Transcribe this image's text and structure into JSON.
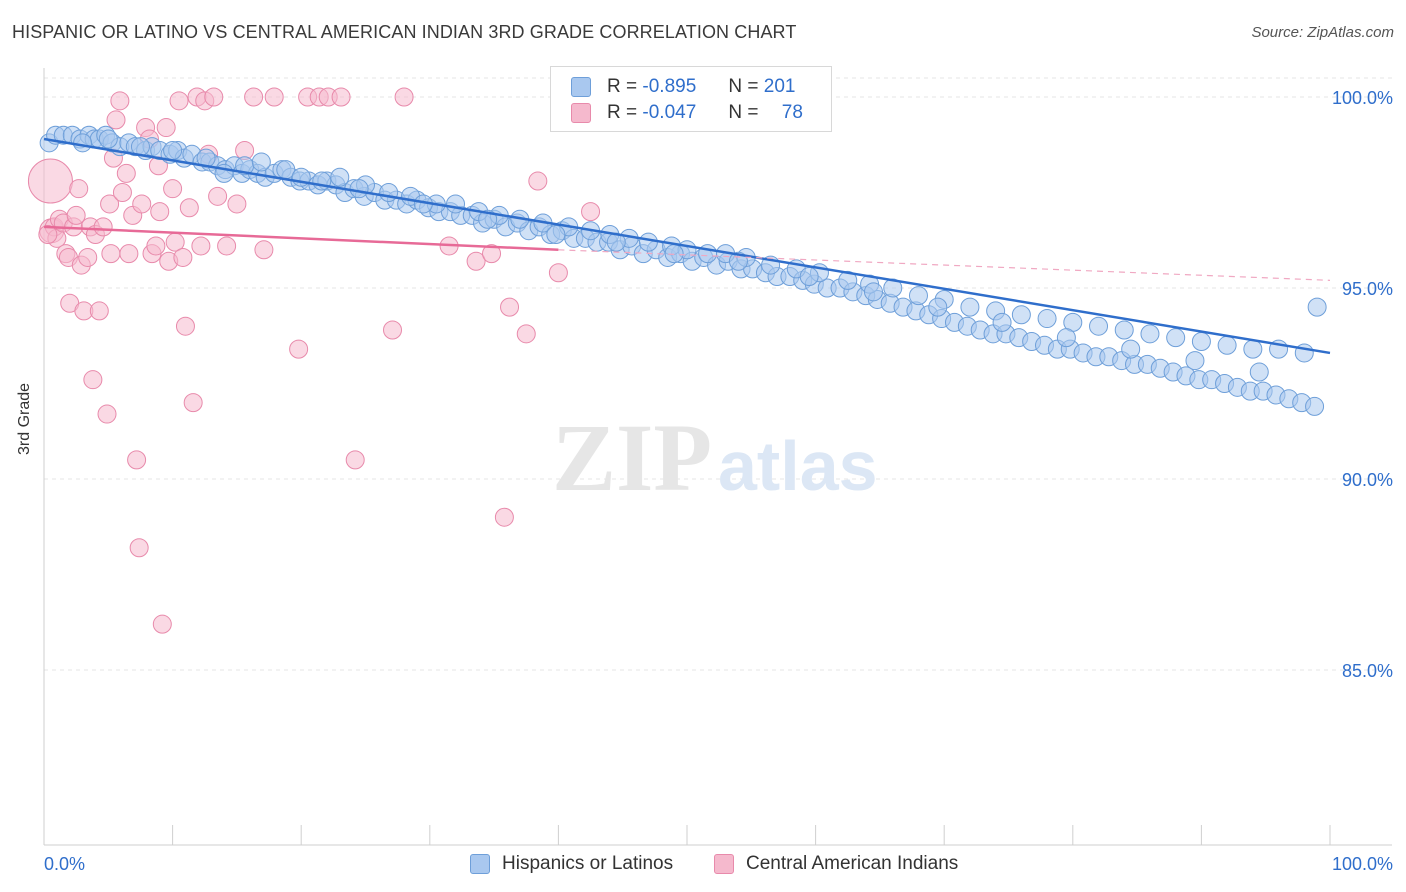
{
  "header": {
    "title": "HISPANIC OR LATINO VS CENTRAL AMERICAN INDIAN 3RD GRADE CORRELATION CHART",
    "source": "Source: ZipAtlas.com"
  },
  "watermark": {
    "zip": "ZIP",
    "atlas": "atlas"
  },
  "legend": {
    "series1": {
      "r_label": "R =",
      "r_value": "-0.895",
      "n_label": "N =",
      "n_value": "201"
    },
    "series2": {
      "r_label": "R =",
      "r_value": "-0.047",
      "n_label": "N =",
      "n_value": "78"
    }
  },
  "bottom_legend": {
    "series1": "Hispanics or Latinos",
    "series2": "Central American Indians"
  },
  "colors": {
    "blue": "#2f6ecb",
    "blue_fill": "#a9c8ef",
    "pink": "#e76a97",
    "pink_fill": "#f5b9cd",
    "grid": "#e0e0e0"
  },
  "chart_data": {
    "type": "scatter",
    "title": "HISPANIC OR LATINO VS CENTRAL AMERICAN INDIAN 3RD GRADE CORRELATION CHART",
    "xlabel": "",
    "ylabel": "3rd Grade",
    "xlim": [
      0,
      100
    ],
    "ylim": [
      80,
      101
    ],
    "x_tick_labels": [
      "0.0%",
      "100.0%"
    ],
    "y_ticks": [
      85,
      90,
      95,
      100
    ],
    "y_tick_labels": [
      "85.0%",
      "90.0%",
      "95.0%",
      "100.0%"
    ],
    "grid": true,
    "legend_position": "top-center",
    "series": [
      {
        "name": "Hispanics or Latinos",
        "color": "#2f6ecb",
        "trend": {
          "x": [
            0,
            100
          ],
          "y": [
            98.9,
            93.3
          ]
        },
        "points": [
          [
            0.4,
            98.8
          ],
          [
            0.9,
            99.0
          ],
          [
            1.5,
            99.0
          ],
          [
            2.2,
            99.0
          ],
          [
            2.8,
            98.9
          ],
          [
            3.5,
            99.0
          ],
          [
            3.9,
            98.9
          ],
          [
            4.3,
            98.9
          ],
          [
            4.8,
            99.0
          ],
          [
            5.3,
            98.8
          ],
          [
            5.9,
            98.7
          ],
          [
            6.6,
            98.8
          ],
          [
            7.1,
            98.7
          ],
          [
            7.9,
            98.6
          ],
          [
            8.4,
            98.7
          ],
          [
            9.0,
            98.6
          ],
          [
            9.8,
            98.5
          ],
          [
            10.4,
            98.6
          ],
          [
            10.9,
            98.4
          ],
          [
            11.5,
            98.5
          ],
          [
            12.3,
            98.3
          ],
          [
            12.9,
            98.3
          ],
          [
            13.5,
            98.2
          ],
          [
            14.1,
            98.1
          ],
          [
            14.8,
            98.2
          ],
          [
            15.4,
            98.0
          ],
          [
            16.0,
            98.1
          ],
          [
            16.6,
            98.0
          ],
          [
            17.2,
            97.9
          ],
          [
            17.9,
            98.0
          ],
          [
            18.5,
            98.1
          ],
          [
            19.2,
            97.9
          ],
          [
            19.9,
            97.8
          ],
          [
            20.6,
            97.8
          ],
          [
            21.3,
            97.7
          ],
          [
            22.0,
            97.8
          ],
          [
            22.7,
            97.7
          ],
          [
            23.4,
            97.5
          ],
          [
            24.1,
            97.6
          ],
          [
            24.9,
            97.4
          ],
          [
            25.7,
            97.5
          ],
          [
            26.5,
            97.3
          ],
          [
            27.4,
            97.3
          ],
          [
            28.2,
            97.2
          ],
          [
            29.0,
            97.3
          ],
          [
            29.9,
            97.1
          ],
          [
            30.7,
            97.0
          ],
          [
            31.6,
            97.0
          ],
          [
            32.4,
            96.9
          ],
          [
            33.3,
            96.9
          ],
          [
            34.1,
            96.7
          ],
          [
            35.0,
            96.8
          ],
          [
            35.9,
            96.6
          ],
          [
            36.8,
            96.7
          ],
          [
            37.7,
            96.5
          ],
          [
            38.5,
            96.6
          ],
          [
            39.4,
            96.4
          ],
          [
            40.3,
            96.5
          ],
          [
            41.2,
            96.3
          ],
          [
            42.1,
            96.3
          ],
          [
            43.0,
            96.2
          ],
          [
            43.9,
            96.2
          ],
          [
            44.8,
            96.0
          ],
          [
            45.7,
            96.1
          ],
          [
            46.6,
            95.9
          ],
          [
            47.6,
            96.0
          ],
          [
            48.5,
            95.8
          ],
          [
            49.5,
            95.9
          ],
          [
            50.4,
            95.7
          ],
          [
            51.3,
            95.8
          ],
          [
            52.3,
            95.6
          ],
          [
            53.2,
            95.7
          ],
          [
            54.2,
            95.5
          ],
          [
            55.1,
            95.5
          ],
          [
            56.1,
            95.4
          ],
          [
            57.0,
            95.3
          ],
          [
            58.0,
            95.3
          ],
          [
            59.0,
            95.2
          ],
          [
            59.9,
            95.1
          ],
          [
            60.9,
            95.0
          ],
          [
            61.9,
            95.0
          ],
          [
            62.9,
            94.9
          ],
          [
            63.9,
            94.8
          ],
          [
            64.8,
            94.7
          ],
          [
            65.8,
            94.6
          ],
          [
            66.8,
            94.5
          ],
          [
            67.8,
            94.4
          ],
          [
            68.8,
            94.3
          ],
          [
            69.8,
            94.2
          ],
          [
            70.8,
            94.1
          ],
          [
            71.8,
            94.0
          ],
          [
            72.8,
            93.9
          ],
          [
            73.8,
            93.8
          ],
          [
            74.8,
            93.8
          ],
          [
            75.8,
            93.7
          ],
          [
            76.8,
            93.6
          ],
          [
            77.8,
            93.5
          ],
          [
            78.8,
            93.4
          ],
          [
            79.8,
            93.4
          ],
          [
            80.8,
            93.3
          ],
          [
            81.8,
            93.2
          ],
          [
            82.8,
            93.2
          ],
          [
            83.8,
            93.1
          ],
          [
            84.8,
            93.0
          ],
          [
            85.8,
            93.0
          ],
          [
            86.8,
            92.9
          ],
          [
            87.8,
            92.8
          ],
          [
            88.8,
            92.7
          ],
          [
            89.8,
            92.6
          ],
          [
            90.8,
            92.6
          ],
          [
            91.8,
            92.5
          ],
          [
            92.8,
            92.4
          ],
          [
            93.8,
            92.3
          ],
          [
            94.8,
            92.3
          ],
          [
            95.8,
            92.2
          ],
          [
            96.8,
            92.1
          ],
          [
            97.8,
            92.0
          ],
          [
            98.8,
            91.9
          ],
          [
            3.0,
            98.8
          ],
          [
            5.0,
            98.9
          ],
          [
            7.5,
            98.7
          ],
          [
            10.0,
            98.6
          ],
          [
            12.6,
            98.4
          ],
          [
            15.6,
            98.2
          ],
          [
            16.9,
            98.3
          ],
          [
            18.8,
            98.1
          ],
          [
            21.6,
            97.8
          ],
          [
            23.0,
            97.9
          ],
          [
            25.0,
            97.7
          ],
          [
            26.8,
            97.5
          ],
          [
            28.5,
            97.4
          ],
          [
            30.5,
            97.2
          ],
          [
            32.0,
            97.2
          ],
          [
            33.8,
            97.0
          ],
          [
            35.4,
            96.9
          ],
          [
            37.0,
            96.8
          ],
          [
            38.8,
            96.7
          ],
          [
            40.8,
            96.6
          ],
          [
            42.5,
            96.5
          ],
          [
            44.0,
            96.4
          ],
          [
            45.5,
            96.3
          ],
          [
            47.0,
            96.2
          ],
          [
            48.8,
            96.1
          ],
          [
            50.0,
            96.0
          ],
          [
            51.6,
            95.9
          ],
          [
            53.0,
            95.9
          ],
          [
            54.6,
            95.8
          ],
          [
            56.5,
            95.6
          ],
          [
            58.5,
            95.5
          ],
          [
            60.3,
            95.4
          ],
          [
            62.5,
            95.2
          ],
          [
            64.2,
            95.1
          ],
          [
            66.0,
            95.0
          ],
          [
            68.0,
            94.8
          ],
          [
            70.0,
            94.7
          ],
          [
            72.0,
            94.5
          ],
          [
            74.0,
            94.4
          ],
          [
            76.0,
            94.3
          ],
          [
            78.0,
            94.2
          ],
          [
            80.0,
            94.1
          ],
          [
            82.0,
            94.0
          ],
          [
            84.0,
            93.9
          ],
          [
            86.0,
            93.8
          ],
          [
            88.0,
            93.7
          ],
          [
            90.0,
            93.6
          ],
          [
            92.0,
            93.5
          ],
          [
            94.0,
            93.4
          ],
          [
            96.0,
            93.4
          ],
          [
            98.0,
            93.3
          ],
          [
            14.0,
            98.0
          ],
          [
            20.0,
            97.9
          ],
          [
            24.5,
            97.6
          ],
          [
            29.5,
            97.2
          ],
          [
            34.5,
            96.8
          ],
          [
            39.8,
            96.4
          ],
          [
            44.5,
            96.2
          ],
          [
            49.0,
            95.9
          ],
          [
            54.0,
            95.7
          ],
          [
            59.5,
            95.3
          ],
          [
            64.5,
            94.9
          ],
          [
            69.5,
            94.5
          ],
          [
            74.5,
            94.1
          ],
          [
            79.5,
            93.7
          ],
          [
            84.5,
            93.4
          ],
          [
            89.5,
            93.1
          ],
          [
            94.5,
            92.8
          ],
          [
            99.0,
            94.5
          ]
        ]
      },
      {
        "name": "Central American Indians",
        "color": "#e76a97",
        "trend": {
          "x": [
            0,
            40
          ],
          "y": [
            96.6,
            96.0
          ],
          "dashed_to": [
            100,
            95.2
          ]
        },
        "points": [
          [
            0.5,
            97.8
          ],
          [
            0.6,
            96.5
          ],
          [
            0.8,
            96.6
          ],
          [
            1.0,
            96.3
          ],
          [
            1.2,
            96.8
          ],
          [
            1.5,
            96.7
          ],
          [
            1.7,
            95.9
          ],
          [
            1.9,
            95.8
          ],
          [
            2.0,
            94.6
          ],
          [
            2.3,
            96.6
          ],
          [
            2.5,
            96.9
          ],
          [
            2.7,
            97.6
          ],
          [
            2.9,
            95.6
          ],
          [
            3.1,
            94.4
          ],
          [
            3.4,
            95.8
          ],
          [
            3.6,
            96.6
          ],
          [
            3.8,
            92.6
          ],
          [
            4.0,
            96.4
          ],
          [
            4.3,
            94.4
          ],
          [
            4.6,
            96.6
          ],
          [
            4.9,
            91.7
          ],
          [
            5.1,
            97.2
          ],
          [
            5.4,
            98.4
          ],
          [
            5.6,
            99.4
          ],
          [
            5.9,
            99.9
          ],
          [
            6.1,
            97.5
          ],
          [
            6.4,
            98.0
          ],
          [
            6.6,
            95.9
          ],
          [
            6.9,
            96.9
          ],
          [
            7.2,
            90.5
          ],
          [
            7.4,
            88.2
          ],
          [
            7.6,
            97.2
          ],
          [
            7.9,
            99.2
          ],
          [
            8.2,
            98.9
          ],
          [
            8.4,
            95.9
          ],
          [
            8.7,
            96.1
          ],
          [
            8.9,
            98.2
          ],
          [
            9.2,
            86.2
          ],
          [
            9.5,
            99.2
          ],
          [
            9.7,
            95.7
          ],
          [
            10.0,
            97.6
          ],
          [
            10.2,
            96.2
          ],
          [
            10.5,
            99.9
          ],
          [
            10.8,
            95.8
          ],
          [
            11.0,
            94.0
          ],
          [
            11.3,
            97.1
          ],
          [
            11.6,
            92.0
          ],
          [
            11.9,
            100.0
          ],
          [
            12.2,
            96.1
          ],
          [
            12.5,
            99.9
          ],
          [
            12.8,
            98.5
          ],
          [
            13.2,
            100.0
          ],
          [
            13.5,
            97.4
          ],
          [
            14.2,
            96.1
          ],
          [
            15.0,
            97.2
          ],
          [
            15.6,
            98.6
          ],
          [
            16.3,
            100.0
          ],
          [
            17.1,
            96.0
          ],
          [
            17.9,
            100.0
          ],
          [
            19.8,
            93.4
          ],
          [
            20.5,
            100.0
          ],
          [
            21.4,
            100.0
          ],
          [
            22.1,
            100.0
          ],
          [
            23.1,
            100.0
          ],
          [
            24.2,
            90.5
          ],
          [
            27.1,
            93.9
          ],
          [
            28.0,
            100.0
          ],
          [
            31.5,
            96.1
          ],
          [
            33.6,
            95.7
          ],
          [
            34.8,
            95.9
          ],
          [
            35.8,
            89.0
          ],
          [
            36.2,
            94.5
          ],
          [
            37.5,
            93.8
          ],
          [
            38.4,
            97.8
          ],
          [
            40.0,
            95.4
          ],
          [
            42.5,
            97.0
          ],
          [
            0.3,
            96.4
          ],
          [
            5.2,
            95.9
          ],
          [
            9.0,
            97.0
          ]
        ]
      }
    ]
  }
}
